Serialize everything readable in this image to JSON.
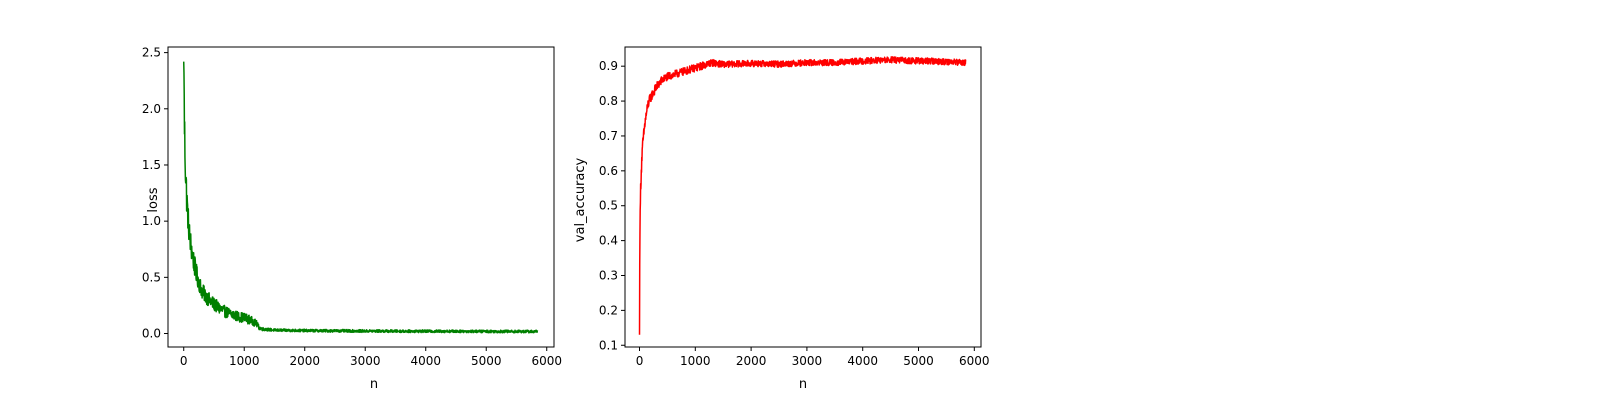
{
  "chart_data": [
    {
      "type": "line",
      "xlabel": "n",
      "ylabel": "loss",
      "xlim": [
        -260,
        6120
      ],
      "ylim": [
        -0.12,
        2.55
      ],
      "xticks": [
        0,
        1000,
        2000,
        3000,
        4000,
        5000,
        6000
      ],
      "yticks": [
        0.0,
        0.5,
        1.0,
        1.5,
        2.0,
        2.5
      ],
      "xtick_labels": [
        "0",
        "1000",
        "2000",
        "3000",
        "4000",
        "5000",
        "6000"
      ],
      "ytick_labels": [
        "0.0",
        "0.5",
        "1.0",
        "1.5",
        "2.0",
        "2.5"
      ],
      "grid": false,
      "series": [
        {
          "color": "#008000",
          "x": [
            0,
            5,
            10,
            20,
            30,
            50,
            75,
            100,
            150,
            200,
            250,
            300,
            400,
            500,
            600,
            700,
            800,
            900,
            1000,
            1100,
            1200,
            1250,
            1300,
            1400,
            1500,
            1750,
            2000,
            2500,
            3000,
            3500,
            4000,
            4500,
            5000,
            5500,
            5850
          ],
          "y": [
            2.42,
            2.3,
            1.9,
            1.65,
            1.45,
            1.2,
            1.0,
            0.85,
            0.68,
            0.55,
            0.46,
            0.38,
            0.31,
            0.26,
            0.22,
            0.19,
            0.17,
            0.15,
            0.14,
            0.12,
            0.09,
            0.05,
            0.04,
            0.035,
            0.03,
            0.028,
            0.026,
            0.024,
            0.022,
            0.021,
            0.02,
            0.02,
            0.019,
            0.018,
            0.018
          ],
          "noise": [
            0,
            0,
            0.25,
            0.2,
            0.18,
            0.15,
            0.13,
            0.12,
            0.1,
            0.09,
            0.08,
            0.07,
            0.065,
            0.06,
            0.055,
            0.05,
            0.05,
            0.045,
            0.045,
            0.04,
            0.03,
            0.018,
            0.015,
            0.013,
            0.012,
            0.012,
            0.012,
            0.012,
            0.012,
            0.012,
            0.012,
            0.012,
            0.012,
            0.012,
            0.012
          ]
        }
      ]
    },
    {
      "type": "line",
      "xlabel": "n",
      "ylabel": "val_accuracy",
      "xlim": [
        -260,
        6120
      ],
      "ylim": [
        0.095,
        0.955
      ],
      "xticks": [
        0,
        1000,
        2000,
        3000,
        4000,
        5000,
        6000
      ],
      "yticks": [
        0.1,
        0.2,
        0.3,
        0.4,
        0.5,
        0.6,
        0.7,
        0.8,
        0.9
      ],
      "xtick_labels": [
        "0",
        "1000",
        "2000",
        "3000",
        "4000",
        "5000",
        "6000"
      ],
      "ytick_labels": [
        "0.1",
        "0.2",
        "0.3",
        "0.4",
        "0.5",
        "0.6",
        "0.7",
        "0.8",
        "0.9"
      ],
      "grid": false,
      "series": [
        {
          "color": "#ff0000",
          "x": [
            0,
            5,
            10,
            20,
            40,
            60,
            100,
            150,
            200,
            300,
            400,
            500,
            700,
            900,
            1100,
            1300,
            1500,
            2000,
            2500,
            3000,
            3500,
            4000,
            4500,
            5000,
            5500,
            5850
          ],
          "y": [
            0.13,
            0.4,
            0.45,
            0.55,
            0.63,
            0.68,
            0.74,
            0.79,
            0.81,
            0.84,
            0.86,
            0.87,
            0.88,
            0.89,
            0.9,
            0.91,
            0.905,
            0.908,
            0.906,
            0.91,
            0.91,
            0.915,
            0.918,
            0.915,
            0.913,
            0.91
          ]
        }
      ],
      "noise": [
        0,
        0.02,
        0.02,
        0.02,
        0.02,
        0.018,
        0.017,
        0.015,
        0.014,
        0.013,
        0.012,
        0.011,
        0.011,
        0.011,
        0.011,
        0.01,
        0.009,
        0.009,
        0.009,
        0.009,
        0.009,
        0.009,
        0.009,
        0.009,
        0.009,
        0.009
      ]
    }
  ]
}
